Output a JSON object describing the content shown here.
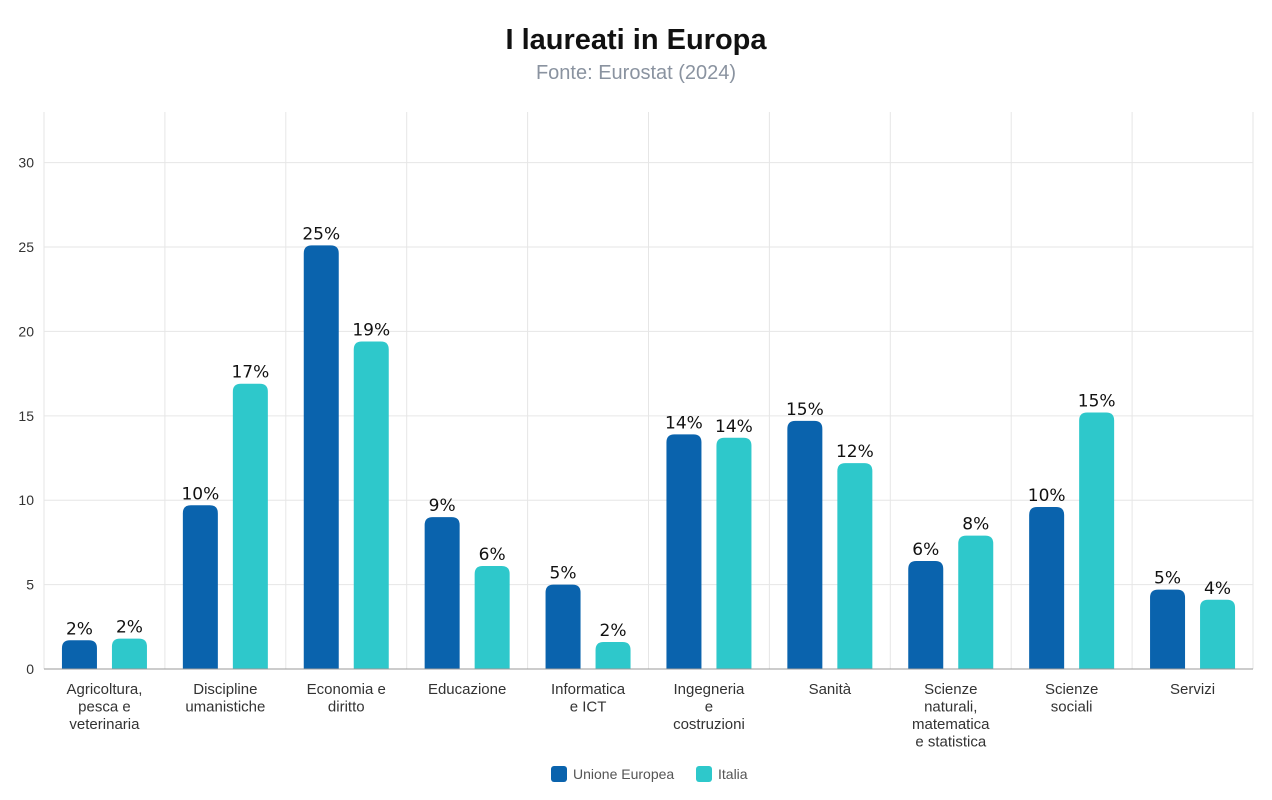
{
  "title": "I laureati in Europa",
  "subtitle": "Fonte: Eurostat (2024)",
  "chart_data": {
    "type": "bar",
    "title": "I laureati in Europa",
    "subtitle": "Fonte: Eurostat (2024)",
    "xlabel": "",
    "ylabel": "",
    "ylim": [
      0,
      33
    ],
    "yticks": [
      0,
      5,
      10,
      15,
      20,
      25,
      30
    ],
    "grid": true,
    "legend_position": "bottom-center",
    "categories": [
      "Agricoltura, pesca e veterinaria",
      "Discipline umanistiche",
      "Economia e diritto",
      "Educazione",
      "Informatica e ICT",
      "Ingegneria e costruzioni",
      "Sanità",
      "Scienze naturali, matematica e statistica",
      "Scienze sociali",
      "Servizi"
    ],
    "category_lines": [
      [
        "Agricoltura,",
        "pesca e",
        "veterinaria"
      ],
      [
        "Discipline",
        "umanistiche"
      ],
      [
        "Economia e",
        "diritto"
      ],
      [
        "Educazione"
      ],
      [
        "Informatica",
        "e ICT"
      ],
      [
        "Ingegneria",
        "e",
        "costruzioni"
      ],
      [
        "Sanità"
      ],
      [
        "Scienze",
        "naturali,",
        "matematica",
        "e statistica"
      ],
      [
        "Scienze",
        "sociali"
      ],
      [
        "Servizi"
      ]
    ],
    "series": [
      {
        "name": "Unione Europea",
        "color": "#0a63ad",
        "values": [
          1.7,
          9.7,
          25.1,
          9.0,
          5.0,
          13.9,
          14.7,
          6.4,
          9.6,
          4.7
        ],
        "labels": [
          "2%",
          "10%",
          "25%",
          "9%",
          "5%",
          "14%",
          "15%",
          "6%",
          "10%",
          "5%"
        ]
      },
      {
        "name": "Italia",
        "color": "#2ec8cb",
        "values": [
          1.8,
          16.9,
          19.4,
          6.1,
          1.6,
          13.7,
          12.2,
          7.9,
          15.2,
          4.1
        ],
        "labels": [
          "2%",
          "17%",
          "19%",
          "6%",
          "2%",
          "14%",
          "12%",
          "8%",
          "15%",
          "4%"
        ]
      }
    ]
  }
}
